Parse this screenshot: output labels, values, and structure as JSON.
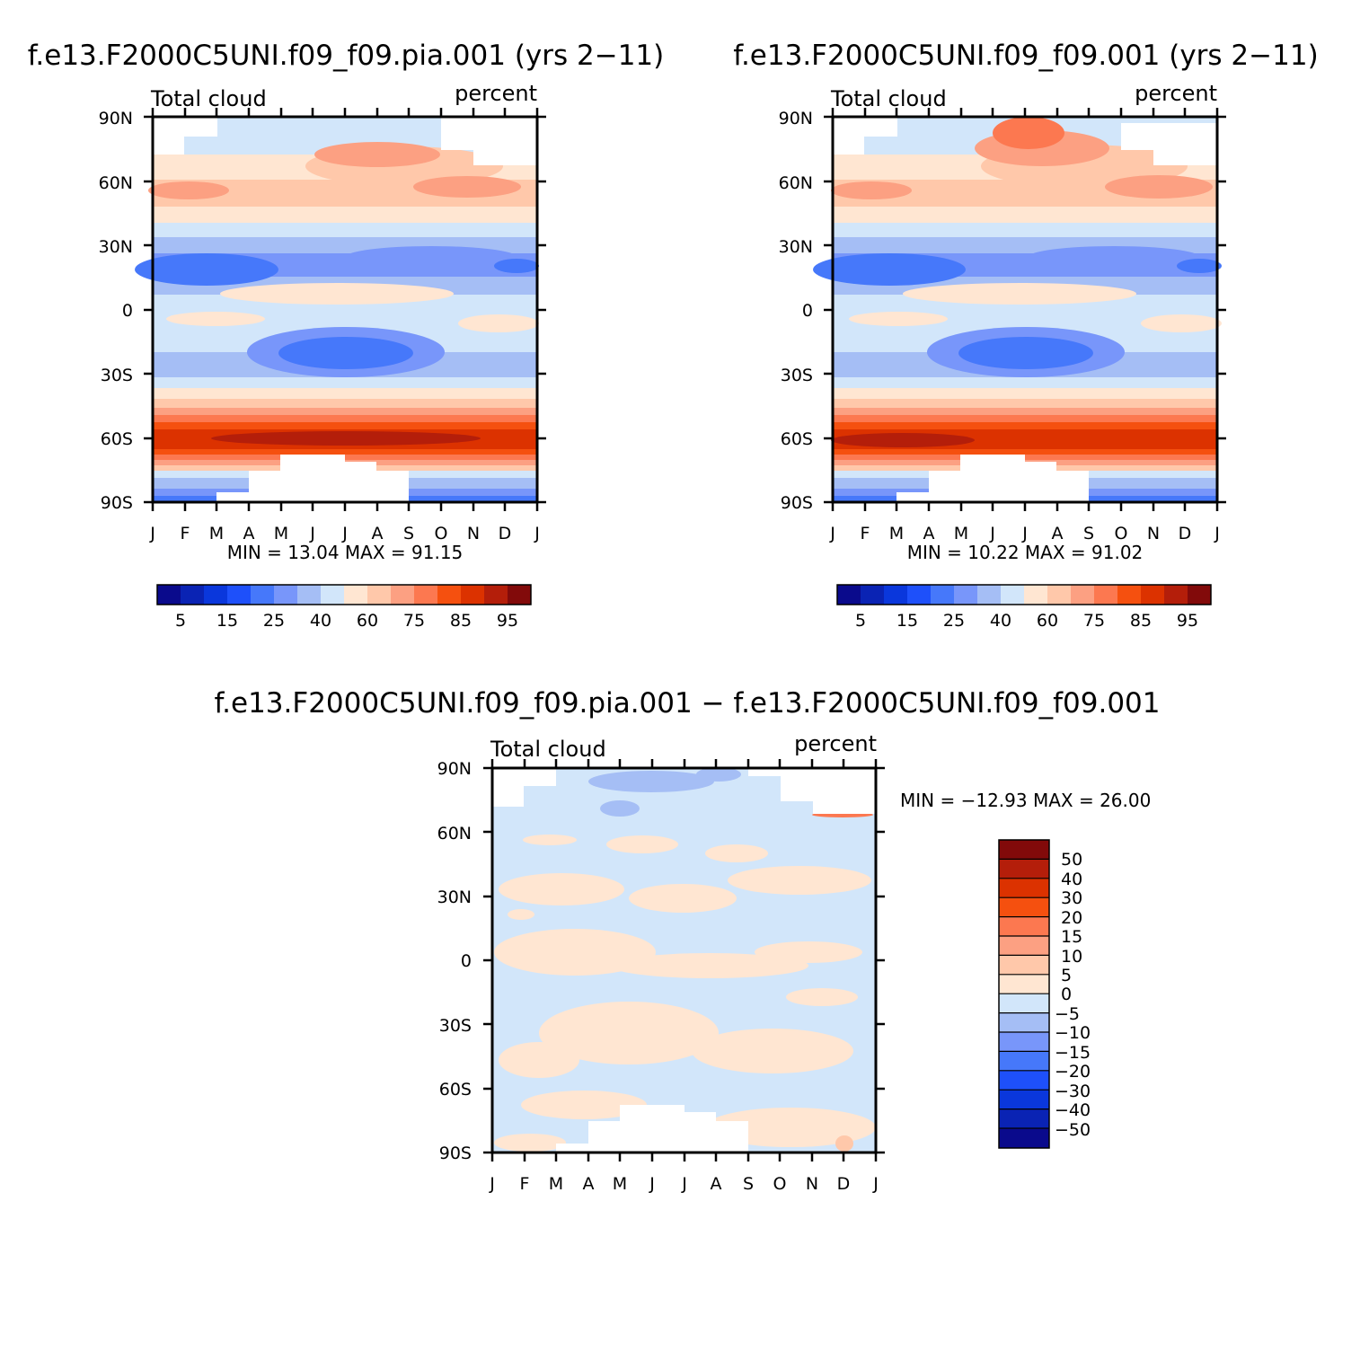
{
  "chart_data": [
    {
      "type": "heatmap",
      "title": "f.e13.F2000C5UNI.f09_f09.pia.001 (yrs 2−11)",
      "left_label": "Total cloud",
      "right_label": "percent",
      "x_tick_labels": [
        "J",
        "F",
        "M",
        "A",
        "M",
        "J",
        "J",
        "A",
        "S",
        "O",
        "N",
        "D",
        "J"
      ],
      "y_tick_labels": [
        "90N",
        "60N",
        "30N",
        "0",
        "30S",
        "60S",
        "90S"
      ],
      "ylim": [
        -90,
        90
      ],
      "min_label": "MIN =",
      "min_value": "13.04",
      "max_label": "MAX =",
      "max_value": "91.15",
      "stats_text": "MIN =  13.04  MAX =  91.15",
      "contour_levels": [
        5,
        10,
        15,
        20,
        25,
        30,
        40,
        50,
        60,
        70,
        75,
        80,
        85,
        90,
        95
      ],
      "colorbar_labels": [
        "5",
        "15",
        "25",
        "40",
        "60",
        "75",
        "85",
        "95"
      ],
      "colorbar_colors": [
        "#0a0a8c",
        "#0a23b4",
        "#0a37dc",
        "#1e50fa",
        "#4678fa",
        "#7896fa",
        "#a5bef5",
        "#d2e6fa",
        "#ffe6d2",
        "#ffc8aa",
        "#fca082",
        "#fc7850",
        "#f5500f",
        "#dc3200",
        "#b41e0a",
        "#820a0a"
      ],
      "missing_data_color": "#ffffff"
    },
    {
      "type": "heatmap",
      "title": "f.e13.F2000C5UNI.f09_f09.001 (yrs 2−11)",
      "left_label": "Total cloud",
      "right_label": "percent",
      "x_tick_labels": [
        "J",
        "F",
        "M",
        "A",
        "M",
        "J",
        "J",
        "A",
        "S",
        "O",
        "N",
        "D",
        "J"
      ],
      "y_tick_labels": [
        "90N",
        "60N",
        "30N",
        "0",
        "30S",
        "60S",
        "90S"
      ],
      "ylim": [
        -90,
        90
      ],
      "min_label": "MIN =",
      "min_value": "10.22",
      "max_label": "MAX =",
      "max_value": "91.02",
      "stats_text": "MIN =  10.22  MAX =  91.02",
      "contour_levels": [
        5,
        10,
        15,
        20,
        25,
        30,
        40,
        50,
        60,
        70,
        75,
        80,
        85,
        90,
        95
      ],
      "colorbar_labels": [
        "5",
        "15",
        "25",
        "40",
        "60",
        "75",
        "85",
        "95"
      ],
      "colorbar_colors": [
        "#0a0a8c",
        "#0a23b4",
        "#0a37dc",
        "#1e50fa",
        "#4678fa",
        "#7896fa",
        "#a5bef5",
        "#d2e6fa",
        "#ffe6d2",
        "#ffc8aa",
        "#fca082",
        "#fc7850",
        "#f5500f",
        "#dc3200",
        "#b41e0a",
        "#820a0a"
      ],
      "missing_data_color": "#ffffff"
    },
    {
      "type": "heatmap",
      "title": "f.e13.F2000C5UNI.f09_f09.pia.001 − f.e13.F2000C5UNI.f09_f09.001",
      "left_label": "Total cloud",
      "right_label": "percent",
      "x_tick_labels": [
        "J",
        "F",
        "M",
        "A",
        "M",
        "J",
        "J",
        "A",
        "S",
        "O",
        "N",
        "D",
        "J"
      ],
      "y_tick_labels": [
        "90N",
        "60N",
        "30N",
        "0",
        "30S",
        "60S",
        "90S"
      ],
      "ylim": [
        -90,
        90
      ],
      "min_label": "MIN =",
      "min_value": "−12.93",
      "max_label": "MAX =",
      "max_value": "26.00",
      "stats_text": "MIN = −12.93  MAX =   26.00",
      "contour_levels": [
        -50,
        -40,
        -30,
        -20,
        -15,
        -10,
        -5,
        0,
        5,
        10,
        15,
        20,
        30,
        40,
        50
      ],
      "colorbar_labels": [
        "50",
        "40",
        "30",
        "20",
        "15",
        "10",
        "5",
        "0",
        "−5",
        "−10",
        "−15",
        "−20",
        "−30",
        "−40",
        "−50"
      ],
      "colorbar_colors": [
        "#820a0a",
        "#b41e0a",
        "#dc3200",
        "#f5500f",
        "#fc7850",
        "#fca082",
        "#ffc8aa",
        "#ffe6d2",
        "#d2e6fa",
        "#a5bef5",
        "#7896fa",
        "#4678fa",
        "#1e50fa",
        "#0a37dc",
        "#0a23b4",
        "#0a0a8c"
      ],
      "missing_data_color": "#ffffff"
    }
  ]
}
